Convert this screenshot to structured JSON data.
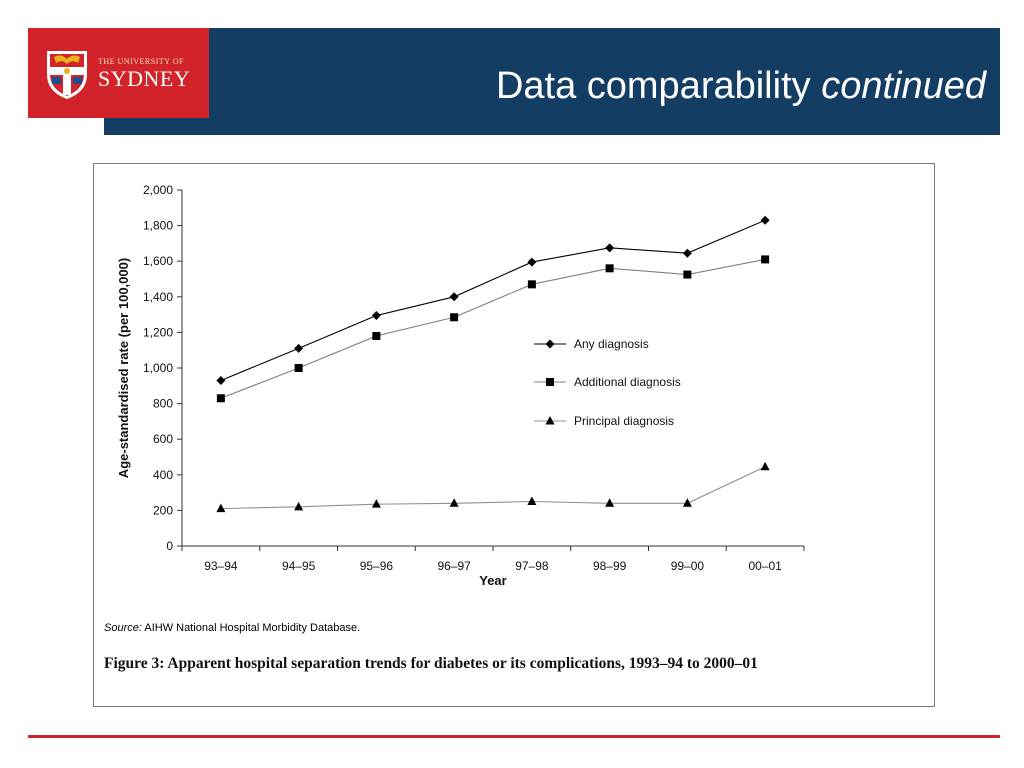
{
  "header": {
    "title_plain": "Data comparability",
    "title_italic": "continued",
    "logo_small": "THE UNIVERSITY OF",
    "logo_big": "SYDNEY",
    "logo_crest": "university-crest-icon"
  },
  "colors": {
    "header_blue": "#143d64",
    "brand_red": "#d2222a",
    "series_dark": "#000000",
    "series_mid": "#555555",
    "series_light": "#888888"
  },
  "figure": {
    "source_label": "Source:",
    "source_text": "AIHW National Hospital Morbidity Database.",
    "caption": "Figure 3: Apparent hospital separation trends for diabetes or its complications, 1993–94 to 2000–01"
  },
  "chart_data": {
    "type": "line",
    "categories": [
      "93–94",
      "94–95",
      "95–96",
      "96–97",
      "97–98",
      "98–99",
      "99–00",
      "00–01"
    ],
    "xlabel": "Year",
    "ylabel": "Age-standardised rate (per 100,000)",
    "ylim": [
      0,
      2000
    ],
    "yticks": [
      0,
      200,
      400,
      600,
      800,
      1000,
      1200,
      1400,
      1600,
      1800,
      2000
    ],
    "ytick_labels": [
      "0",
      "200",
      "400",
      "600",
      "800",
      "1,000",
      "1,200",
      "1,400",
      "1,600",
      "1,800",
      "2,000"
    ],
    "grid": false,
    "legend_position": "center-right",
    "series": [
      {
        "name": "Any diagnosis",
        "marker": "diamond",
        "color": "#000000",
        "values": [
          930,
          1110,
          1295,
          1400,
          1595,
          1675,
          1645,
          1830
        ]
      },
      {
        "name": "Additional diagnosis",
        "marker": "square",
        "color": "#555555",
        "values": [
          830,
          1000,
          1180,
          1285,
          1470,
          1560,
          1525,
          1610
        ]
      },
      {
        "name": "Principal diagnosis",
        "marker": "triangle",
        "color": "#888888",
        "values": [
          210,
          220,
          235,
          240,
          250,
          240,
          240,
          445
        ]
      }
    ]
  }
}
